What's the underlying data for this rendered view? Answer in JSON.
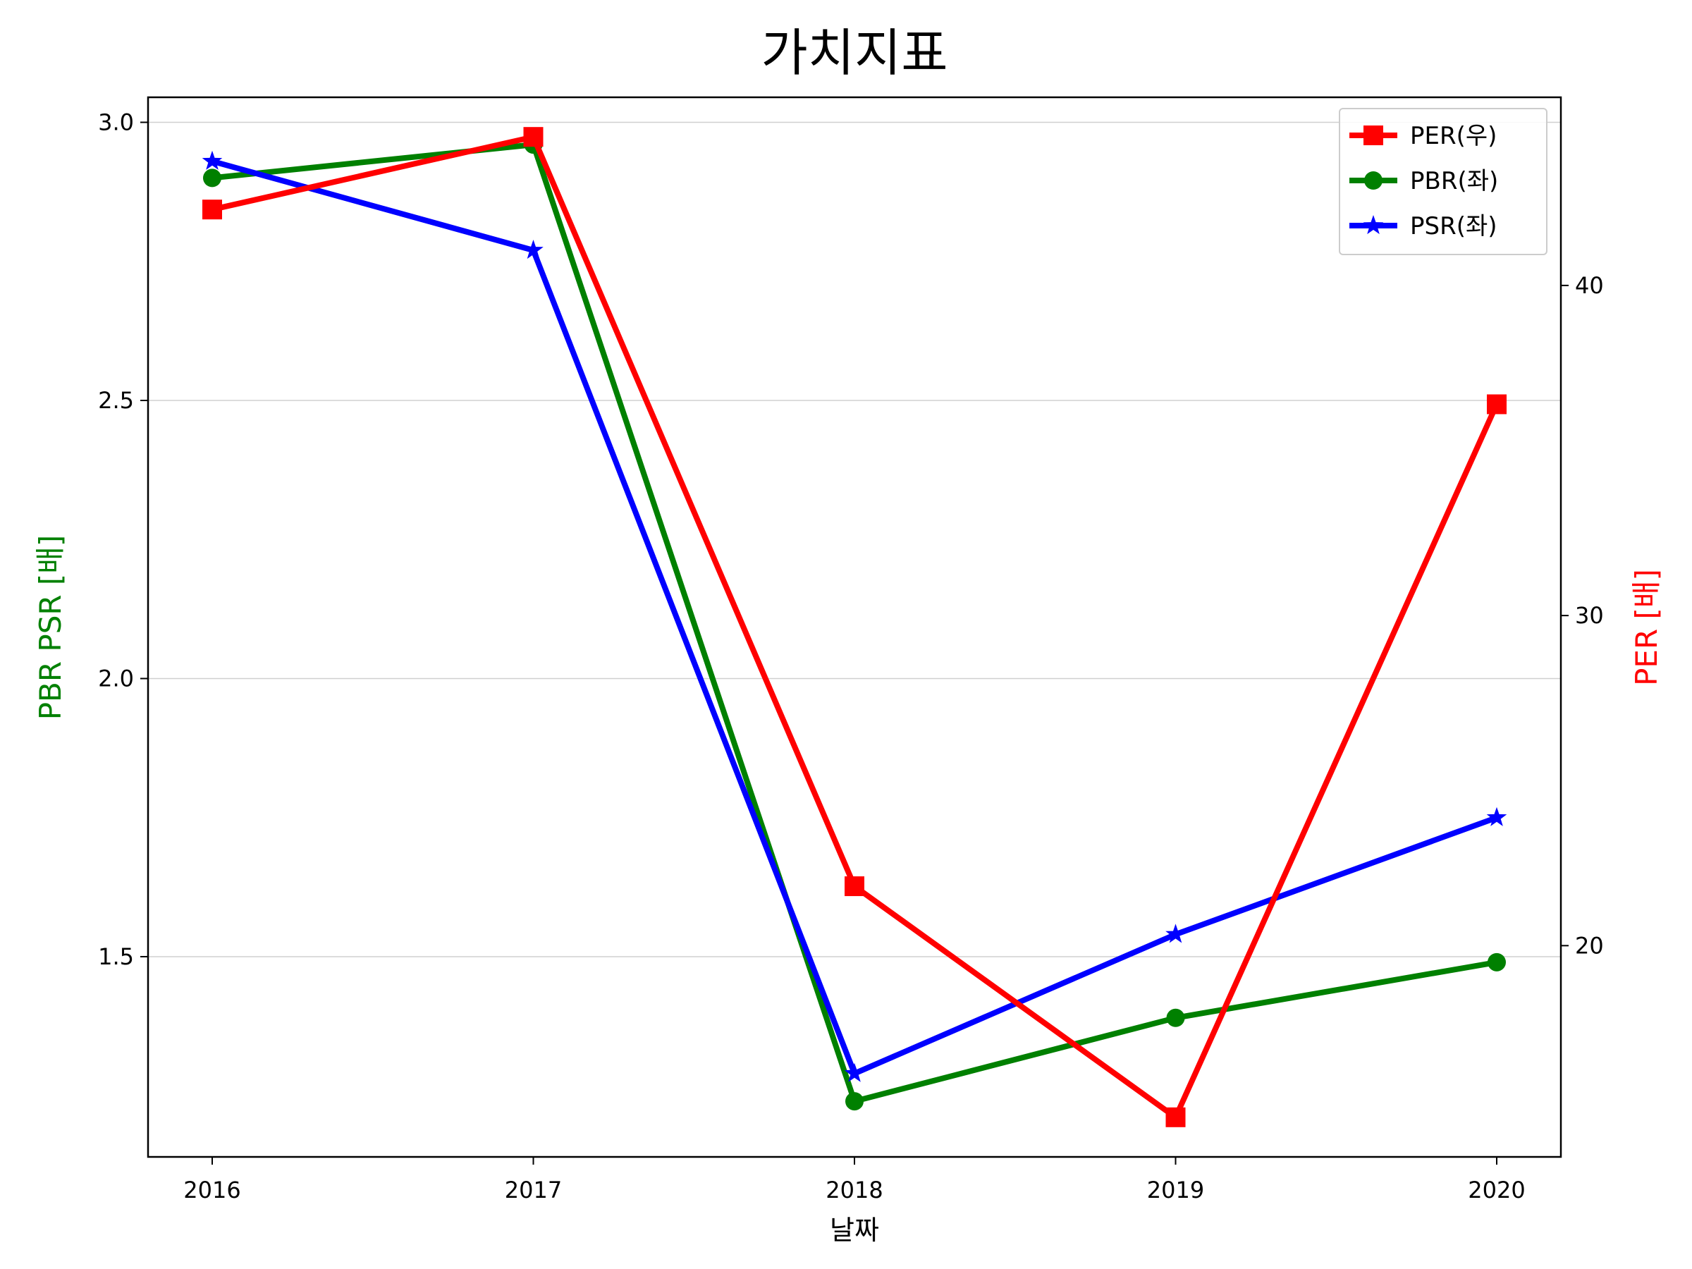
{
  "chart_data": {
    "type": "line",
    "title": "가치지표",
    "xlabel": "날짜",
    "ylabel_left": "PBR PSR [배]",
    "ylabel_right": "PER [배]",
    "categories": [
      "2016",
      "2017",
      "2018",
      "2019",
      "2020"
    ],
    "left_ylim": [
      1.14,
      3.045
    ],
    "left_yticks": [
      "1.5",
      "2.0",
      "2.5",
      "3.0"
    ],
    "right_ylim": [
      13.6,
      45.7
    ],
    "right_yticks": [
      "20",
      "30",
      "40"
    ],
    "grid": "horizontal (left axis)",
    "legend_position": "top-right",
    "series": [
      {
        "name": "PER(우)",
        "axis": "right",
        "color": "#ff0000",
        "marker": "square",
        "values": [
          42.3,
          44.5,
          21.8,
          14.8,
          36.4
        ]
      },
      {
        "name": "PBR(좌)",
        "axis": "left",
        "color": "#008000",
        "marker": "circle",
        "values": [
          2.9,
          2.96,
          1.24,
          1.39,
          1.49
        ]
      },
      {
        "name": "PSR(좌)",
        "axis": "left",
        "color": "#0000ff",
        "marker": "star",
        "values": [
          2.93,
          2.77,
          1.29,
          1.54,
          1.75
        ]
      }
    ]
  }
}
